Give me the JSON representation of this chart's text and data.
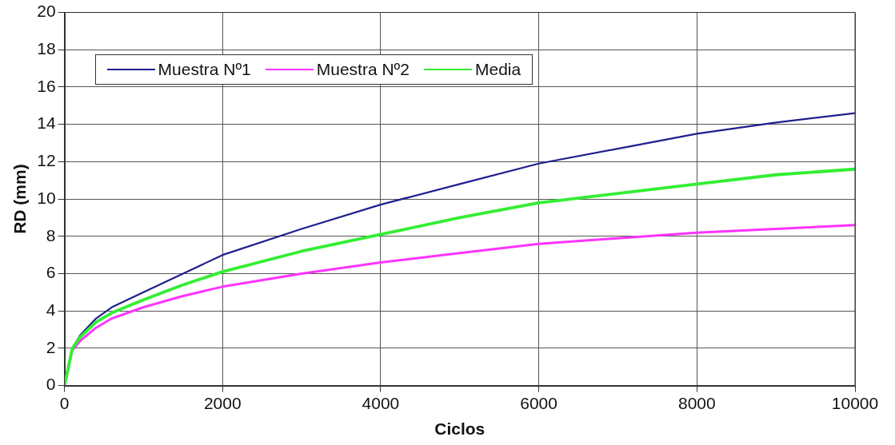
{
  "chart_data": {
    "type": "line",
    "xlabel": "Ciclos",
    "ylabel": "RD (mm)",
    "x": [
      0,
      100,
      200,
      400,
      600,
      1000,
      1500,
      2000,
      3000,
      4000,
      5000,
      6000,
      7000,
      8000,
      9000,
      10000
    ],
    "series": [
      {
        "name": "Muestra Nº1",
        "color": "#1f1f8f",
        "values": [
          0,
          2.0,
          2.7,
          3.6,
          4.2,
          5.0,
          6.0,
          7.0,
          8.4,
          9.7,
          10.8,
          11.9,
          12.7,
          13.5,
          14.1,
          14.6
        ]
      },
      {
        "name": "Muestra Nº2",
        "color": "#ff33ff",
        "values": [
          0,
          1.9,
          2.4,
          3.1,
          3.6,
          4.2,
          4.8,
          5.3,
          6.0,
          6.6,
          7.1,
          7.6,
          7.9,
          8.2,
          8.4,
          8.6
        ]
      },
      {
        "name": "Media",
        "color": "#33ee33",
        "values": [
          0,
          2.0,
          2.6,
          3.4,
          3.9,
          4.6,
          5.4,
          6.1,
          7.2,
          8.1,
          9.0,
          9.8,
          10.3,
          10.8,
          11.3,
          11.6
        ]
      }
    ],
    "xlim": [
      0,
      10000
    ],
    "xticks": [
      0,
      2000,
      4000,
      6000,
      8000,
      10000
    ],
    "ylim": [
      0,
      20
    ],
    "yticks": [
      0,
      2,
      4,
      6,
      8,
      10,
      12,
      14,
      16,
      18,
      20
    ],
    "grid": true,
    "legend": "top left",
    "marker": "none",
    "line_style": "solid"
  }
}
